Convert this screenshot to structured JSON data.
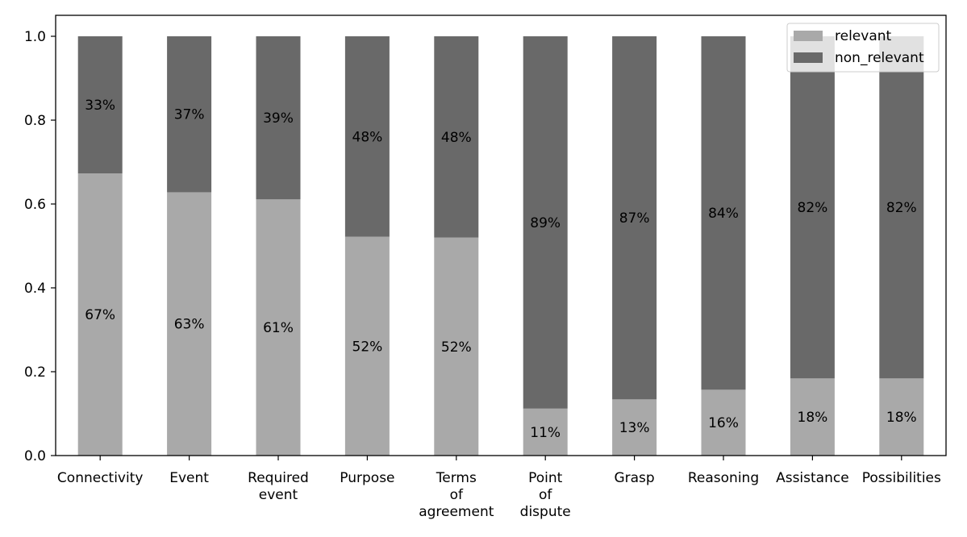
{
  "chart_data": {
    "type": "bar",
    "stacked": true,
    "categories": [
      [
        "Connectivity"
      ],
      [
        "Event"
      ],
      [
        "Required",
        "event"
      ],
      [
        "Purpose"
      ],
      [
        "Terms",
        "of",
        "agreement"
      ],
      [
        "Point",
        "of",
        "dispute"
      ],
      [
        "Grasp"
      ],
      [
        "Reasoning"
      ],
      [
        "Assistance"
      ],
      [
        "Possibilities"
      ]
    ],
    "series": [
      {
        "name": "relevant",
        "color": "#a9a9a9",
        "values": [
          0.673,
          0.628,
          0.611,
          0.522,
          0.52,
          0.112,
          0.134,
          0.157,
          0.184,
          0.184
        ],
        "labels": [
          "67%",
          "63%",
          "61%",
          "52%",
          "52%",
          "11%",
          "13%",
          "16%",
          "18%",
          "18%"
        ]
      },
      {
        "name": "non_relevant",
        "color": "#696969",
        "values": [
          0.327,
          0.372,
          0.389,
          0.478,
          0.48,
          0.888,
          0.866,
          0.843,
          0.816,
          0.816
        ],
        "labels": [
          "33%",
          "37%",
          "39%",
          "48%",
          "48%",
          "89%",
          "87%",
          "84%",
          "82%",
          "82%"
        ]
      }
    ],
    "title": "",
    "xlabel": "",
    "ylabel": "",
    "ylim": [
      0,
      1.0
    ],
    "yticks": [
      "0.0",
      "0.2",
      "0.4",
      "0.6",
      "0.8",
      "1.0"
    ],
    "ytick_values": [
      0,
      0.2,
      0.4,
      0.6,
      0.8,
      1.0
    ],
    "grid": false,
    "legend_position": "top-right"
  }
}
